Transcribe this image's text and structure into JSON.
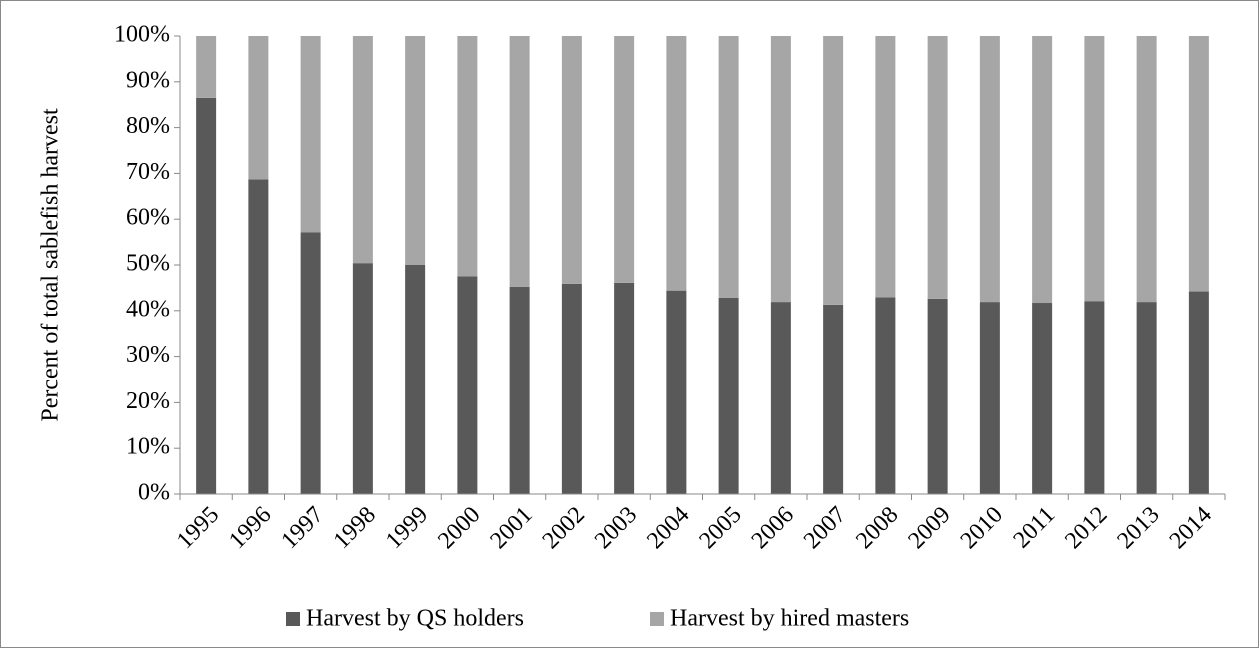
{
  "chart_data": {
    "type": "stacked-bar",
    "y_label": "Percent of total sablefish harvest",
    "categories": [
      "1995",
      "1996",
      "1997",
      "1998",
      "1999",
      "2000",
      "2001",
      "2002",
      "2003",
      "2004",
      "2005",
      "2006",
      "2007",
      "2008",
      "2009",
      "2010",
      "2011",
      "2012",
      "2013",
      "2014"
    ],
    "series": [
      {
        "name": "Harvest by QS holders",
        "color": "#595959",
        "values": [
          86.5,
          68.7,
          57.1,
          50.4,
          50.0,
          47.5,
          45.2,
          45.9,
          46.1,
          44.4,
          42.8,
          41.9,
          41.3,
          42.9,
          42.6,
          41.9,
          41.7,
          42.1,
          41.9,
          44.2
        ]
      },
      {
        "name": "Harvest by hired masters",
        "color": "#a6a6a6",
        "values": [
          13.5,
          31.3,
          42.9,
          49.6,
          50.0,
          52.5,
          54.8,
          54.1,
          53.9,
          55.6,
          57.2,
          58.1,
          58.7,
          57.1,
          57.4,
          58.1,
          58.3,
          57.9,
          58.1,
          55.8
        ]
      }
    ],
    "ylim": [
      0,
      100
    ],
    "yticks": [
      {
        "value": 0,
        "label": "0%"
      },
      {
        "value": 10,
        "label": "10%"
      },
      {
        "value": 20,
        "label": "20%"
      },
      {
        "value": 30,
        "label": "30%"
      },
      {
        "value": 40,
        "label": "40%"
      },
      {
        "value": 50,
        "label": "50%"
      },
      {
        "value": 60,
        "label": "60%"
      },
      {
        "value": 70,
        "label": "70%"
      },
      {
        "value": 80,
        "label": "80%"
      },
      {
        "value": 90,
        "label": "90%"
      },
      {
        "value": 100,
        "label": "100%"
      }
    ],
    "legend": "bottom"
  }
}
